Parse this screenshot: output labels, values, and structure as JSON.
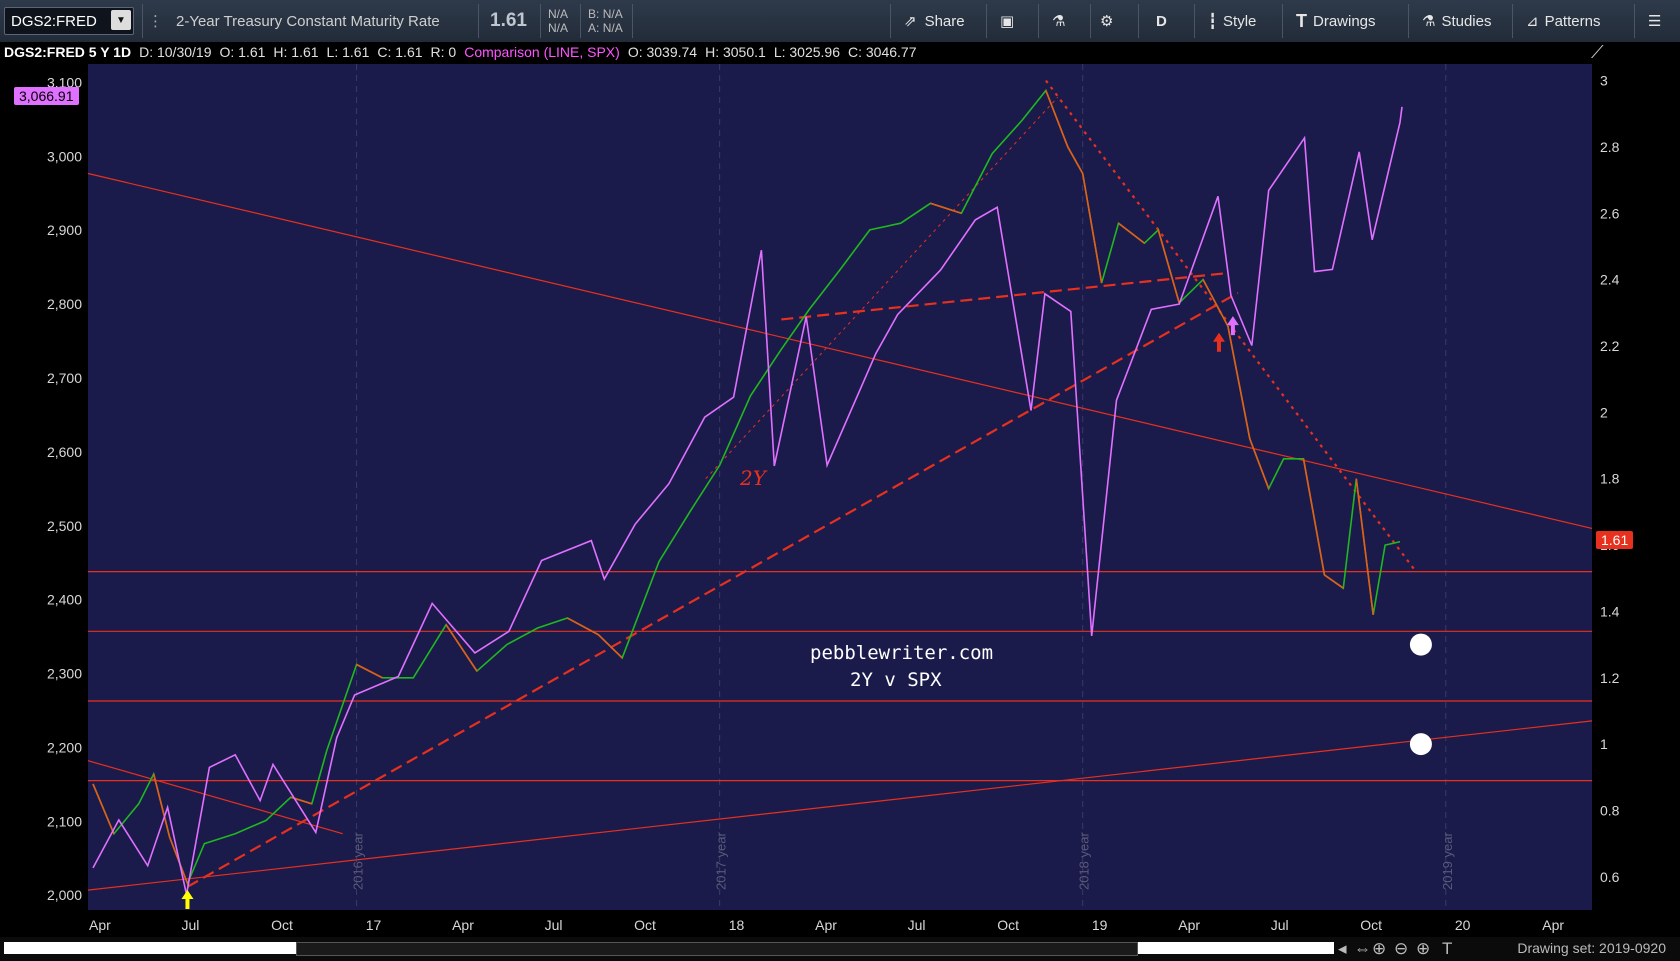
{
  "toolbar": {
    "symbol": "DGS2:FRED",
    "description": "2-Year Treasury Constant Maturity Rate",
    "last": "1.61",
    "bid_label": "B:",
    "bid": "N/A",
    "ask_label": "A:",
    "ask": "N/A",
    "chg1": "N/A",
    "chg2": "N/A",
    "share": "Share",
    "period": "D",
    "style": "Style",
    "drawings": "Drawings",
    "studies": "Studies",
    "patterns": "Patterns"
  },
  "legend": {
    "symbol": "DGS2:FRED 5 Y 1D",
    "date": "D: 10/30/19",
    "open": "O: 1.61",
    "high": "H: 1.61",
    "low": "L: 1.61",
    "close": "C: 1.61",
    "range": "R: 0",
    "comparison": "Comparison (LINE, SPX)",
    "cmp_open": "O: 3039.74",
    "cmp_high": "H: 3050.1",
    "cmp_low": "L: 3025.96",
    "cmp_close": "C: 3046.77"
  },
  "annotations": {
    "watermark_line1": "pebblewriter.com",
    "watermark_line2": "2Y v SPX",
    "series_tag": "2Y",
    "spx_tag": "3,066.91",
    "rate_tag": "1.61"
  },
  "colors": {
    "background": "#1b1b4b",
    "spx": "#e070ff",
    "trend": "#e8301e",
    "up": "#1fb81f",
    "down": "#e85a1a"
  },
  "scrollbar": {
    "drawing_set": "Drawing set: 2019-0920"
  },
  "chart_data": {
    "type": "line",
    "title": "",
    "left_axis": {
      "label": "SPX",
      "ticks": [
        2000,
        2100,
        2200,
        2300,
        2400,
        2500,
        2600,
        2700,
        2800,
        2900,
        3000,
        3100
      ],
      "tick_labels": [
        "2,000",
        "2,100",
        "2,200",
        "2,300",
        "2,400",
        "2,500",
        "2,600",
        "2,700",
        "2,800",
        "2,900",
        "3,000",
        "3,100"
      ],
      "range": [
        1980,
        3125
      ]
    },
    "right_axis": {
      "label": "2Y",
      "ticks": [
        0.6,
        0.8,
        1,
        1.2,
        1.4,
        1.6,
        1.8,
        2,
        2.2,
        2.4,
        2.6,
        2.8,
        3
      ],
      "tick_labels": [
        "0.6",
        "0.8",
        "1",
        "1.2",
        "1.4",
        "1.6",
        "1.8",
        "2",
        "2.2",
        "2.4",
        "2.6",
        "2.8",
        "3"
      ],
      "range": [
        0.5,
        3.05
      ]
    },
    "x_axis": {
      "range": [
        "2016-03-20",
        "2020-05-10"
      ],
      "ticks": [
        {
          "date": "2016-04-01",
          "label": "Apr"
        },
        {
          "date": "2016-07-01",
          "label": "Jul"
        },
        {
          "date": "2016-10-01",
          "label": "Oct"
        },
        {
          "date": "2017-01-01",
          "label": "17"
        },
        {
          "date": "2017-04-01",
          "label": "Apr"
        },
        {
          "date": "2017-07-01",
          "label": "Jul"
        },
        {
          "date": "2017-10-01",
          "label": "Oct"
        },
        {
          "date": "2018-01-01",
          "label": "18"
        },
        {
          "date": "2018-04-01",
          "label": "Apr"
        },
        {
          "date": "2018-07-01",
          "label": "Jul"
        },
        {
          "date": "2018-10-01",
          "label": "Oct"
        },
        {
          "date": "2019-01-01",
          "label": "19"
        },
        {
          "date": "2019-04-01",
          "label": "Apr"
        },
        {
          "date": "2019-07-01",
          "label": "Jul"
        },
        {
          "date": "2019-10-01",
          "label": "Oct"
        },
        {
          "date": "2020-01-01",
          "label": "20"
        },
        {
          "date": "2020-04-01",
          "label": "Apr"
        }
      ],
      "year_dividers": [
        {
          "date": "2016-12-15",
          "label": "2016 year"
        },
        {
          "date": "2017-12-15",
          "label": "2017 year"
        },
        {
          "date": "2018-12-15",
          "label": "2018 year"
        },
        {
          "date": "2019-12-15",
          "label": "2019 year"
        }
      ]
    },
    "series": [
      {
        "name": "DGS2:FRED",
        "axis": "right",
        "points": [
          [
            "2016-03-25",
            0.88
          ],
          [
            "2016-04-15",
            0.73
          ],
          [
            "2016-05-10",
            0.82
          ],
          [
            "2016-05-25",
            0.91
          ],
          [
            "2016-06-10",
            0.72
          ],
          [
            "2016-06-28",
            0.58
          ],
          [
            "2016-07-15",
            0.7
          ],
          [
            "2016-08-15",
            0.73
          ],
          [
            "2016-09-15",
            0.77
          ],
          [
            "2016-10-10",
            0.84
          ],
          [
            "2016-10-31",
            0.82
          ],
          [
            "2016-11-15",
            0.98
          ],
          [
            "2016-12-15",
            1.24
          ],
          [
            "2017-01-10",
            1.2
          ],
          [
            "2017-02-10",
            1.2
          ],
          [
            "2017-03-15",
            1.36
          ],
          [
            "2017-04-15",
            1.22
          ],
          [
            "2017-05-15",
            1.3
          ],
          [
            "2017-06-15",
            1.35
          ],
          [
            "2017-07-15",
            1.38
          ],
          [
            "2017-08-15",
            1.33
          ],
          [
            "2017-09-08",
            1.26
          ],
          [
            "2017-10-15",
            1.55
          ],
          [
            "2017-11-15",
            1.7
          ],
          [
            "2017-12-15",
            1.84
          ],
          [
            "2018-01-15",
            2.05
          ],
          [
            "2018-02-15",
            2.19
          ],
          [
            "2018-03-15",
            2.31
          ],
          [
            "2018-04-15",
            2.43
          ],
          [
            "2018-05-15",
            2.55
          ],
          [
            "2018-06-15",
            2.57
          ],
          [
            "2018-07-15",
            2.63
          ],
          [
            "2018-08-15",
            2.6
          ],
          [
            "2018-09-15",
            2.78
          ],
          [
            "2018-10-15",
            2.88
          ],
          [
            "2018-11-08",
            2.97
          ],
          [
            "2018-11-30",
            2.8
          ],
          [
            "2018-12-15",
            2.72
          ],
          [
            "2019-01-03",
            2.39
          ],
          [
            "2019-01-20",
            2.57
          ],
          [
            "2019-02-15",
            2.51
          ],
          [
            "2019-03-01",
            2.55
          ],
          [
            "2019-03-22",
            2.33
          ],
          [
            "2019-04-15",
            2.4
          ],
          [
            "2019-05-10",
            2.26
          ],
          [
            "2019-06-01",
            1.92
          ],
          [
            "2019-06-20",
            1.77
          ],
          [
            "2019-07-05",
            1.86
          ],
          [
            "2019-07-25",
            1.86
          ],
          [
            "2019-08-15",
            1.51
          ],
          [
            "2019-09-03",
            1.47
          ],
          [
            "2019-09-16",
            1.8
          ],
          [
            "2019-10-03",
            1.39
          ],
          [
            "2019-10-15",
            1.6
          ],
          [
            "2019-10-30",
            1.61
          ]
        ]
      },
      {
        "name": "SPX",
        "axis": "left",
        "points": [
          [
            "2016-03-25",
            2037
          ],
          [
            "2016-04-20",
            2102
          ],
          [
            "2016-05-19",
            2040
          ],
          [
            "2016-06-08",
            2119
          ],
          [
            "2016-06-27",
            2001
          ],
          [
            "2016-07-20",
            2173
          ],
          [
            "2016-08-15",
            2190
          ],
          [
            "2016-09-09",
            2128
          ],
          [
            "2016-09-22",
            2177
          ],
          [
            "2016-11-04",
            2085
          ],
          [
            "2016-11-25",
            2213
          ],
          [
            "2016-12-13",
            2271
          ],
          [
            "2017-01-26",
            2296
          ],
          [
            "2017-03-01",
            2395
          ],
          [
            "2017-04-13",
            2328
          ],
          [
            "2017-05-17",
            2357
          ],
          [
            "2017-06-19",
            2453
          ],
          [
            "2017-08-08",
            2480
          ],
          [
            "2017-08-21",
            2428
          ],
          [
            "2017-09-21",
            2502
          ],
          [
            "2017-10-25",
            2557
          ],
          [
            "2017-11-30",
            2647
          ],
          [
            "2017-12-29",
            2674
          ],
          [
            "2018-01-26",
            2873
          ],
          [
            "2018-02-08",
            2581
          ],
          [
            "2018-03-12",
            2783
          ],
          [
            "2018-04-02",
            2582
          ],
          [
            "2018-05-21",
            2733
          ],
          [
            "2018-06-12",
            2786
          ],
          [
            "2018-07-25",
            2846
          ],
          [
            "2018-08-29",
            2914
          ],
          [
            "2018-09-20",
            2931
          ],
          [
            "2018-10-24",
            2656
          ],
          [
            "2018-11-07",
            2814
          ],
          [
            "2018-12-03",
            2790
          ],
          [
            "2018-12-24",
            2351
          ],
          [
            "2019-01-18",
            2670
          ],
          [
            "2019-02-22",
            2793
          ],
          [
            "2019-03-22",
            2800
          ],
          [
            "2019-04-30",
            2946
          ],
          [
            "2019-05-13",
            2812
          ],
          [
            "2019-06-03",
            2744
          ],
          [
            "2019-06-20",
            2954
          ],
          [
            "2019-07-26",
            3025
          ],
          [
            "2019-08-05",
            2844
          ],
          [
            "2019-08-23",
            2847
          ],
          [
            "2019-09-19",
            3006
          ],
          [
            "2019-10-02",
            2887
          ],
          [
            "2019-10-30",
            3046
          ],
          [
            "2019-11-01",
            3067
          ]
        ]
      }
    ]
  }
}
